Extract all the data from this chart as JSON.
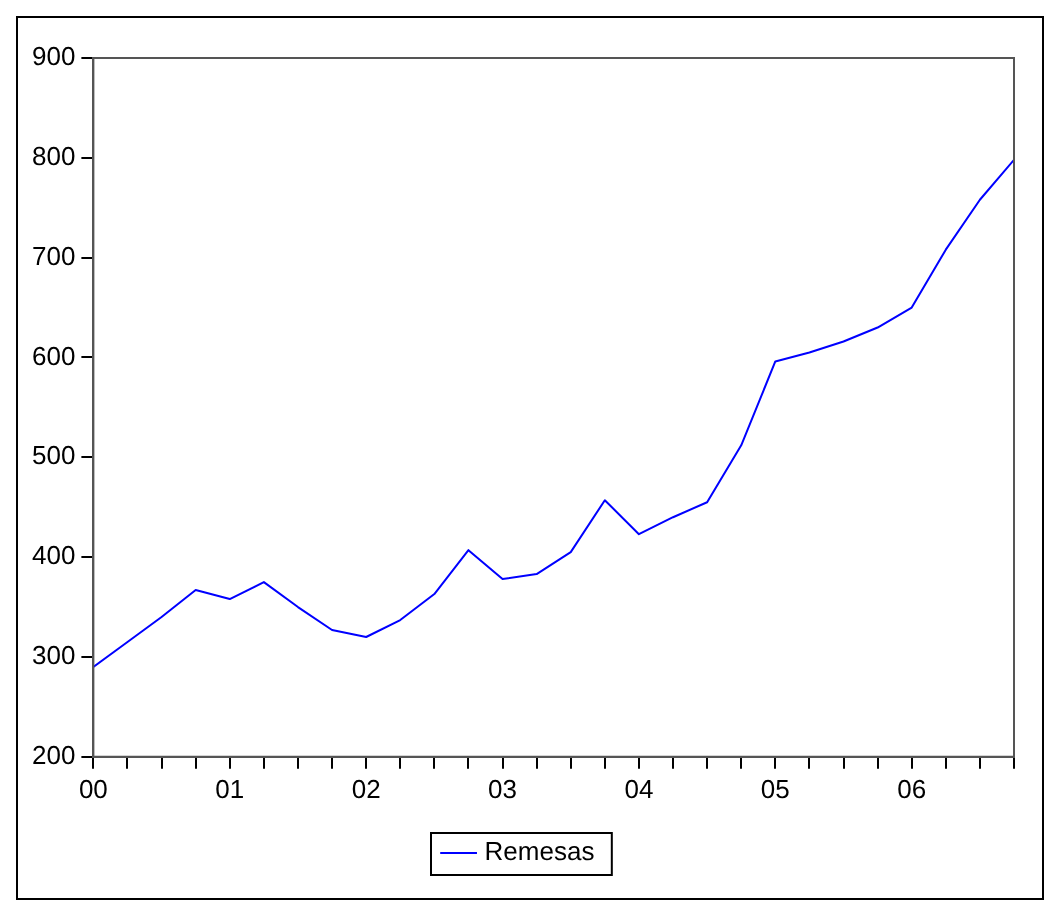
{
  "chart_data": {
    "type": "line",
    "x": [
      0,
      0.25,
      0.5,
      0.75,
      1,
      1.25,
      1.5,
      1.75,
      2,
      2.25,
      2.5,
      2.75,
      3,
      3.25,
      3.5,
      3.75,
      4,
      4.25,
      4.5,
      4.75,
      5,
      5.25,
      5.5,
      5.75,
      6,
      6.25,
      6.5,
      6.75
    ],
    "series": [
      {
        "name": "Remesas",
        "color": "#0000ff",
        "values": [
          290,
          315,
          340,
          367,
          358,
          375,
          350,
          327,
          320,
          337,
          363,
          407,
          378,
          383,
          405,
          457,
          423,
          440,
          455,
          512,
          596,
          605,
          616,
          630,
          650,
          708,
          758,
          798
        ]
      }
    ],
    "xlim": [
      0,
      6.75
    ],
    "xticks": [
      {
        "value": 0,
        "label": "00"
      },
      {
        "value": 0.25,
        "label": null
      },
      {
        "value": 0.5,
        "label": null
      },
      {
        "value": 0.75,
        "label": null
      },
      {
        "value": 1,
        "label": "01"
      },
      {
        "value": 1.25,
        "label": null
      },
      {
        "value": 1.5,
        "label": null
      },
      {
        "value": 1.75,
        "label": null
      },
      {
        "value": 2,
        "label": "02"
      },
      {
        "value": 2.25,
        "label": null
      },
      {
        "value": 2.5,
        "label": null
      },
      {
        "value": 2.75,
        "label": null
      },
      {
        "value": 3,
        "label": "03"
      },
      {
        "value": 3.25,
        "label": null
      },
      {
        "value": 3.5,
        "label": null
      },
      {
        "value": 3.75,
        "label": null
      },
      {
        "value": 4,
        "label": "04"
      },
      {
        "value": 4.25,
        "label": null
      },
      {
        "value": 4.5,
        "label": null
      },
      {
        "value": 4.75,
        "label": null
      },
      {
        "value": 5,
        "label": "05"
      },
      {
        "value": 5.25,
        "label": null
      },
      {
        "value": 5.5,
        "label": null
      },
      {
        "value": 5.75,
        "label": null
      },
      {
        "value": 6,
        "label": "06"
      },
      {
        "value": 6.25,
        "label": null
      },
      {
        "value": 6.5,
        "label": null
      },
      {
        "value": 6.75,
        "label": null
      }
    ],
    "ylim": [
      200,
      900
    ],
    "yticks": [
      200,
      300,
      400,
      500,
      600,
      700,
      800,
      900
    ],
    "grid": false,
    "legend": "bottom",
    "marker": "none",
    "line_style": "solid"
  }
}
